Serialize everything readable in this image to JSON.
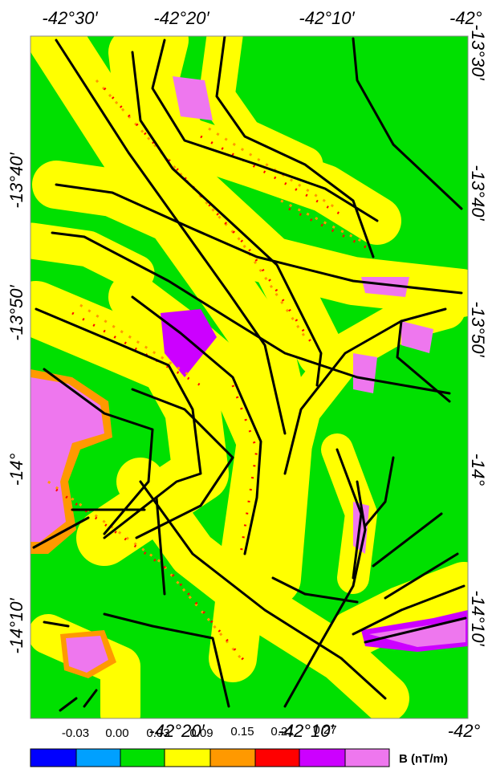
{
  "top_labels": [
    "-42°30′",
    "-42°20′",
    "-42°10′",
    "-42°"
  ],
  "bottom_labels": [
    "-42°20′",
    "-42°10′",
    "-42°"
  ],
  "left_labels": [
    "-13°40′",
    "-13°50′",
    "-14°",
    "-14°10′"
  ],
  "right_labels": [
    "-13°30′",
    "-13°40′",
    "-13°50′",
    "-14°",
    "-14°10′"
  ],
  "legend": {
    "ticks": [
      "-0.03",
      "0.00",
      "0.03",
      "0.09",
      "0.15",
      "0.21",
      "0.27"
    ],
    "unit": "B (nT/m)"
  }
}
